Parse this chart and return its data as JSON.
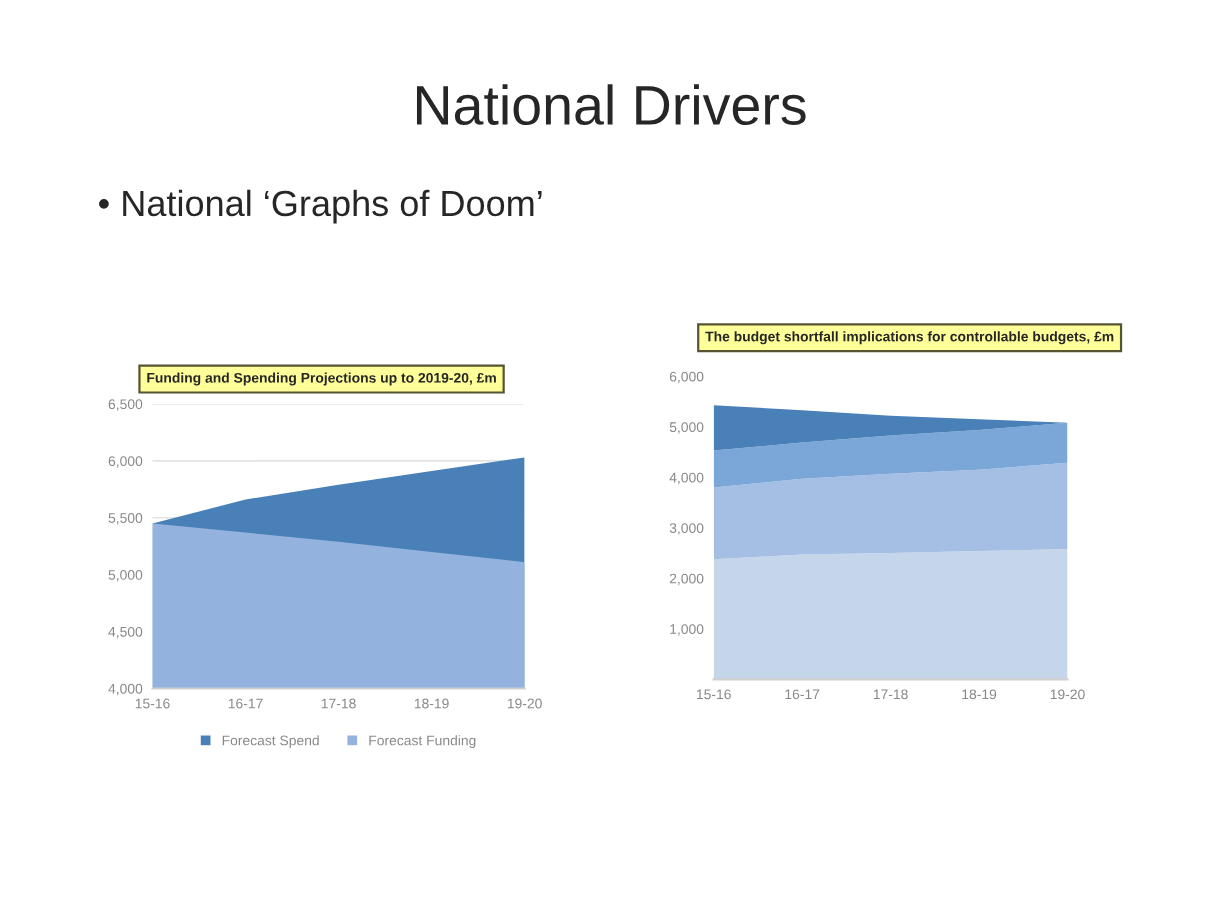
{
  "chart_data": [
    {
      "type": "area",
      "title": "Funding and Spending Projections up to 2019-20, £m",
      "annotations": [
        "National Drivers",
        "• National ‘Graphs of Doom’"
      ],
      "categories": [
        "15-16",
        "16-17",
        "17-18",
        "18-19",
        "19-20"
      ],
      "series": [
        {
          "name": "Forecast Spend",
          "color": "#4a80b8",
          "values": [
            5450,
            5660,
            5790,
            5910,
            6030
          ]
        },
        {
          "name": "Forecast Funding",
          "color": "#93b3de",
          "values": [
            5450,
            5370,
            5290,
            5200,
            5110
          ]
        }
      ],
      "ylim": [
        4000,
        6500
      ],
      "yticks": [
        {
          "value": 4000,
          "label": "4,000"
        },
        {
          "value": 4500,
          "label": "4,500"
        },
        {
          "value": 5000,
          "label": "5,000"
        },
        {
          "value": 5500,
          "label": "5,500"
        },
        {
          "value": 6000,
          "label": "6,000"
        },
        {
          "value": 6500,
          "label": "6,500"
        }
      ],
      "grid": "y",
      "legend": "bottom"
    },
    {
      "type": "area",
      "title": "The budget shortfall implications for controllable budgets, £m",
      "categories": [
        "15-16",
        "16-17",
        "17-18",
        "18-19",
        "19-20"
      ],
      "stacked": true,
      "series": [
        {
          "color": "#c5d5ea",
          "values": [
            2380,
            2470,
            2500,
            2540,
            2580
          ]
        },
        {
          "color": "#a4bfe3",
          "values": [
            1420,
            1500,
            1570,
            1610,
            1710
          ]
        },
        {
          "color": "#7ba6d8",
          "values": [
            730,
            720,
            760,
            790,
            790
          ]
        },
        {
          "color": "#4a80b8",
          "values": [
            900,
            640,
            390,
            210,
            0
          ]
        }
      ],
      "ylim": [
        0,
        6000
      ],
      "yticks": [
        {
          "value": 1000,
          "label": "1,000"
        },
        {
          "value": 2000,
          "label": "2,000"
        },
        {
          "value": 3000,
          "label": "3,000"
        },
        {
          "value": 4000,
          "label": "4,000"
        },
        {
          "value": 5000,
          "label": "5,000"
        },
        {
          "value": 6000,
          "label": "6,000"
        }
      ],
      "grid": false,
      "legend": false
    }
  ]
}
